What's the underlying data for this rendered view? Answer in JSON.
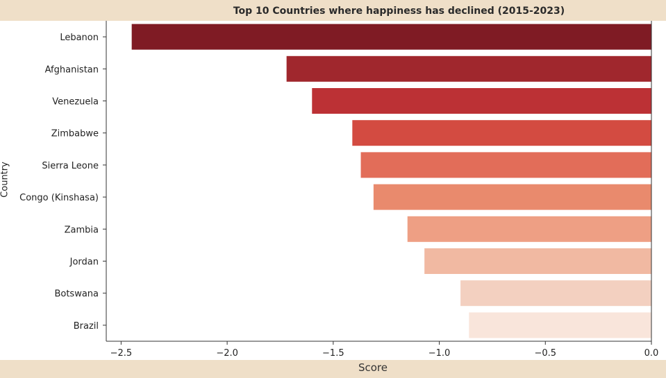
{
  "chart_data": {
    "type": "bar",
    "orientation": "horizontal",
    "title": "Top 10 Countries where happiness has declined (2015-2023)",
    "xlabel": "Score",
    "ylabel": "Country",
    "categories": [
      "Lebanon",
      "Afghanistan",
      "Venezuela",
      "Zimbabwe",
      "Sierra Leone",
      "Congo (Kinshasa)",
      "Zambia",
      "Jordan",
      "Botswana",
      "Brazil"
    ],
    "values": [
      -2.45,
      -1.72,
      -1.6,
      -1.41,
      -1.37,
      -1.31,
      -1.15,
      -1.07,
      -0.9,
      -0.86
    ],
    "xlim": [
      -2.57,
      0.0
    ],
    "xticks": [
      -2.5,
      -2.0,
      -1.5,
      -1.0,
      -0.5,
      0.0
    ],
    "xtick_labels": [
      "−2.5",
      "−2.0",
      "−1.5",
      "−1.0",
      "−0.5",
      "0.0"
    ],
    "colors": [
      "#7f1b24",
      "#a0272d",
      "#bc3135",
      "#d34b41",
      "#e26d59",
      "#e98a6d",
      "#ee9f84",
      "#f1b9a2",
      "#f3d0c0",
      "#f9e5db"
    ],
    "grid": false,
    "legend": "none"
  }
}
